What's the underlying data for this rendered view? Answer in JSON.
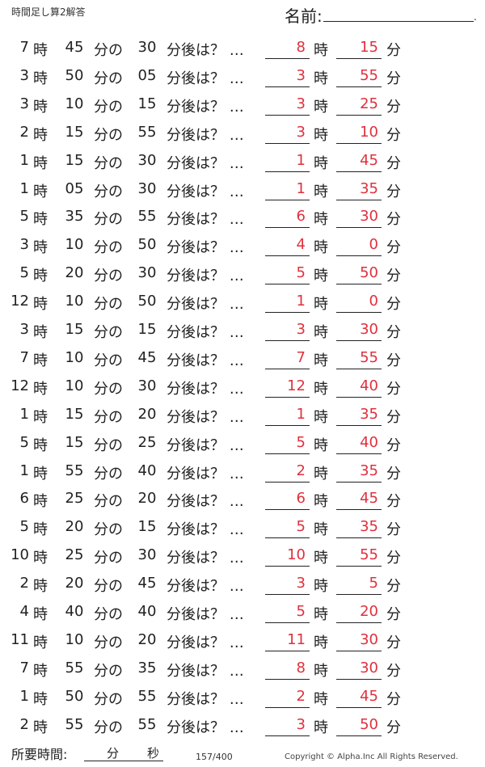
{
  "header": {
    "title": "時間足し算2解答",
    "name_label": "名前:"
  },
  "labels": {
    "hour": "時",
    "minute": "分",
    "of": "分の",
    "later": "分後は？ …"
  },
  "rows": [
    {
      "h": "7",
      "m": "45",
      "add": "30",
      "ah": "8",
      "am": "15"
    },
    {
      "h": "3",
      "m": "50",
      "add": "05",
      "ah": "3",
      "am": "55"
    },
    {
      "h": "3",
      "m": "10",
      "add": "15",
      "ah": "3",
      "am": "25"
    },
    {
      "h": "2",
      "m": "15",
      "add": "55",
      "ah": "3",
      "am": "10"
    },
    {
      "h": "1",
      "m": "15",
      "add": "30",
      "ah": "1",
      "am": "45"
    },
    {
      "h": "1",
      "m": "05",
      "add": "30",
      "ah": "1",
      "am": "35"
    },
    {
      "h": "5",
      "m": "35",
      "add": "55",
      "ah": "6",
      "am": "30"
    },
    {
      "h": "3",
      "m": "10",
      "add": "50",
      "ah": "4",
      "am": "0"
    },
    {
      "h": "5",
      "m": "20",
      "add": "30",
      "ah": "5",
      "am": "50"
    },
    {
      "h": "12",
      "m": "10",
      "add": "50",
      "ah": "1",
      "am": "0"
    },
    {
      "h": "3",
      "m": "15",
      "add": "15",
      "ah": "3",
      "am": "30"
    },
    {
      "h": "7",
      "m": "10",
      "add": "45",
      "ah": "7",
      "am": "55"
    },
    {
      "h": "12",
      "m": "10",
      "add": "30",
      "ah": "12",
      "am": "40"
    },
    {
      "h": "1",
      "m": "15",
      "add": "20",
      "ah": "1",
      "am": "35"
    },
    {
      "h": "5",
      "m": "15",
      "add": "25",
      "ah": "5",
      "am": "40"
    },
    {
      "h": "1",
      "m": "55",
      "add": "40",
      "ah": "2",
      "am": "35"
    },
    {
      "h": "6",
      "m": "25",
      "add": "20",
      "ah": "6",
      "am": "45"
    },
    {
      "h": "5",
      "m": "20",
      "add": "15",
      "ah": "5",
      "am": "35"
    },
    {
      "h": "10",
      "m": "25",
      "add": "30",
      "ah": "10",
      "am": "55"
    },
    {
      "h": "2",
      "m": "20",
      "add": "45",
      "ah": "3",
      "am": "5"
    },
    {
      "h": "4",
      "m": "40",
      "add": "40",
      "ah": "5",
      "am": "20"
    },
    {
      "h": "11",
      "m": "10",
      "add": "20",
      "ah": "11",
      "am": "30"
    },
    {
      "h": "7",
      "m": "55",
      "add": "35",
      "ah": "8",
      "am": "30"
    },
    {
      "h": "1",
      "m": "50",
      "add": "55",
      "ah": "2",
      "am": "45"
    },
    {
      "h": "2",
      "m": "55",
      "add": "55",
      "ah": "3",
      "am": "50"
    }
  ],
  "footer": {
    "time_label": "所要時間:",
    "min_label": "分",
    "sec_label": "秒",
    "page": "157/400",
    "copyright": "Copyright ©  Alpha.Inc All Rights Reserved."
  },
  "colors": {
    "answer": "#e0303d",
    "text": "#222222"
  }
}
